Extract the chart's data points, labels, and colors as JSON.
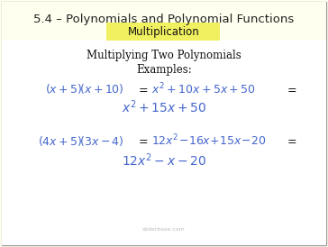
{
  "title": "5.4 – Polynomials and Polynomial Functions",
  "subtitle": "Multiplication",
  "heading": "Multiplying Two Polynomials",
  "subheading": "Examples:",
  "outer_bg": "#fffff0",
  "header_bg": "#fffff0",
  "content_bg": "#ffffff",
  "subtitle_bg": "#f5f580",
  "border_color": "#aaaaaa",
  "title_color": "#222222",
  "dark_color": "#111111",
  "blue_color": "#4466cc",
  "watermark": "sliderbase.com",
  "watermark_color": "#bbbbbb"
}
